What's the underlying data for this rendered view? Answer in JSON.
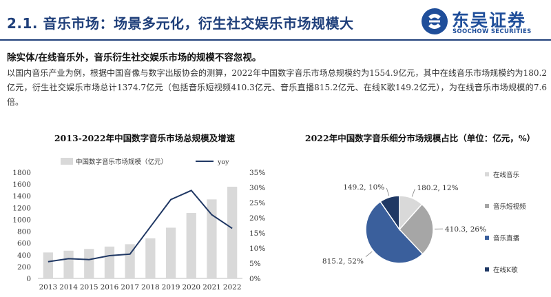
{
  "header": {
    "title": "2.1. 音乐市场：场景多元化，衍生社交娱乐市场规模大",
    "logo_cn": "东吴证券",
    "logo_en": "SOOCHOW SECURITIES"
  },
  "lead": "除实体/在线音乐外，音乐衍生社交娱乐市场的规模不容忽视。",
  "paragraph": "以国内音乐产业为例，根据中国音像与数字出版协会的测算，2022年中国数字音乐市场总规模约为1554.9亿元，其中在线音乐市场规模约为180.2亿元，衍生社交娱乐市场总计1374.7亿元（包括音乐短视频410.3亿元、音乐直播815.2亿元、在线K歌149.2亿元），为在线音乐市场规模的7.6倍。",
  "colors": {
    "brand": "#1f3f7a",
    "bar": "#d9d9d9",
    "line": "#203864",
    "pie": [
      "#d9d9d9",
      "#a6a6a6",
      "#3a5f9c",
      "#1f3864"
    ]
  },
  "chart_data": [
    {
      "type": "bar",
      "title": "2013-2022年中国数字音乐市场总规模及增速",
      "categories": [
        "2013",
        "2014",
        "2015",
        "2016",
        "2017",
        "2018",
        "2019",
        "2020",
        "2021",
        "2022"
      ],
      "series": [
        {
          "name": "中国数字音乐市场规模（亿元）",
          "type": "bar",
          "axis": "left",
          "values": [
            440,
            470,
            500,
            540,
            580,
            680,
            860,
            1110,
            1340,
            1555
          ]
        },
        {
          "name": "yoy",
          "type": "line",
          "axis": "right",
          "values": [
            5.5,
            6.5,
            6.2,
            7.5,
            8.0,
            17.0,
            26.0,
            29.0,
            21.0,
            16.5
          ]
        }
      ],
      "yticks_left": [
        "0",
        "200",
        "400",
        "600",
        "800",
        "1000",
        "1200",
        "1400",
        "1600",
        "1800"
      ],
      "yticks_right": [
        "0%",
        "5%",
        "10%",
        "15%",
        "20%",
        "25%",
        "30%",
        "35%"
      ],
      "ylim_left": [
        0,
        1800
      ],
      "ylim_right": [
        0,
        35
      ],
      "legend_position": "top",
      "grid": false
    },
    {
      "type": "pie",
      "title": "2022年中国数字音乐细分市场规模占比（单位：亿元，%）",
      "categories": [
        "在线音乐",
        "音乐短视频",
        "音乐直播",
        "在线K歌"
      ],
      "values": [
        180.2,
        410.3,
        815.2,
        149.2
      ],
      "labels": [
        "180.2, 12%",
        "410.3, 26%",
        "815.2, 52%",
        "149.2, 10%"
      ],
      "legend_position": "right"
    }
  ]
}
